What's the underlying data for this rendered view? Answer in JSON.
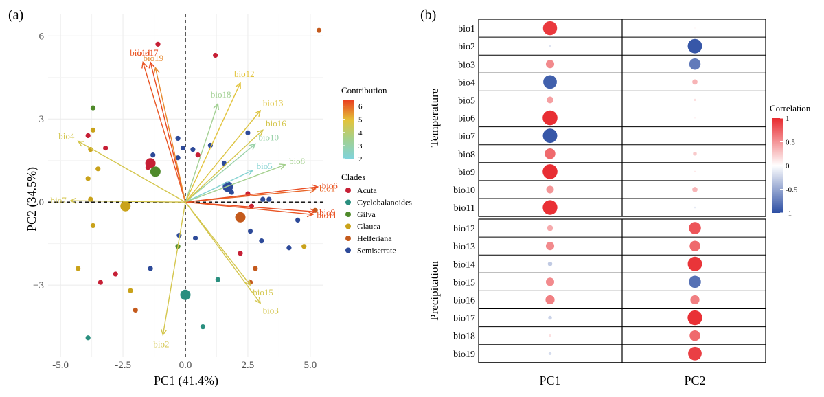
{
  "colors": {
    "acuta": "#c61f35",
    "cyclobalanoides": "#2a8f7f",
    "gilva": "#4f8a2b",
    "glauca": "#c9a21a",
    "helferiana": "#c45a1c",
    "semiserrate": "#2d4a99",
    "corr_neg": "#2c4ea3",
    "corr_mid": "#ffffff",
    "corr_pos": "#e82a2f",
    "contrib_low": "#7fd3dc",
    "contrib_mid1": "#a6d08a",
    "contrib_mid2": "#e3c33a",
    "contrib_high": "#ea3b1f",
    "grid": "#ebebeb",
    "axis_text": "#4d4d4d"
  },
  "chart_data": [
    {
      "panel_label": "(a)",
      "type": "scatter",
      "xlabel": "PC1 (41.4%)",
      "ylabel": "PC2 (34.5%)",
      "xlim": [
        -5.5,
        5.5
      ],
      "ylim": [
        -5.6,
        6.8
      ],
      "xticks": [
        -5,
        -2.5,
        0,
        2.5,
        5
      ],
      "xtick_labels": [
        "-5.0",
        "-2.5",
        "0.0",
        "2.5",
        "5.0"
      ],
      "yticks": [
        -3,
        0,
        3,
        6
      ],
      "ytick_labels": [
        "−3",
        "0",
        "3",
        "6"
      ],
      "grid": true,
      "legend_clades": {
        "title": "Clades",
        "items": [
          {
            "name": "Acuta",
            "color_key": "acuta"
          },
          {
            "name": "Cyclobalanoides",
            "color_key": "cyclobalanoides"
          },
          {
            "name": "Gilva",
            "color_key": "gilva"
          },
          {
            "name": "Glauca",
            "color_key": "glauca"
          },
          {
            "name": "Helferiana",
            "color_key": "helferiana"
          },
          {
            "name": "Semiserrate",
            "color_key": "semiserrate"
          }
        ]
      },
      "legend_contribution": {
        "title": "Contribution",
        "min": 2,
        "max": 6.5,
        "ticks": [
          2,
          3,
          4,
          5,
          6
        ],
        "tick_labels": [
          "2",
          "3",
          "4",
          "5",
          "6"
        ]
      },
      "arrows": [
        {
          "name": "bio1",
          "x": 5.2,
          "y": 0.45,
          "contribution": 6.0
        },
        {
          "name": "bio2",
          "x": -0.9,
          "y": -4.8,
          "contribution": 4.6
        },
        {
          "name": "bio3",
          "x": 3.0,
          "y": -3.65,
          "contribution": 4.6
        },
        {
          "name": "bio4",
          "x": -4.3,
          "y": 2.2,
          "contribution": 4.6
        },
        {
          "name": "bio5",
          "x": 2.7,
          "y": 1.15,
          "contribution": 2.2
        },
        {
          "name": "bio6",
          "x": 5.3,
          "y": 0.55,
          "contribution": 6.3
        },
        {
          "name": "bio7",
          "x": -4.6,
          "y": 0.05,
          "contribution": 4.6
        },
        {
          "name": "bio8",
          "x": 4.0,
          "y": 1.35,
          "contribution": 3.5
        },
        {
          "name": "bio9",
          "x": 5.2,
          "y": -0.35,
          "contribution": 6.3
        },
        {
          "name": "bio10",
          "x": 2.8,
          "y": 2.1,
          "contribution": 3.0
        },
        {
          "name": "bio11",
          "x": 5.1,
          "y": -0.45,
          "contribution": 6.2
        },
        {
          "name": "bio12",
          "x": 2.2,
          "y": 4.3,
          "contribution": 4.9
        },
        {
          "name": "bio13",
          "x": 3.0,
          "y": 3.3,
          "contribution": 4.8
        },
        {
          "name": "bio14",
          "x": -1.7,
          "y": 5.05,
          "contribution": 6.2
        },
        {
          "name": "bio15",
          "x": 2.6,
          "y": -3.0,
          "contribution": 4.6
        },
        {
          "name": "bio16",
          "x": 3.1,
          "y": 2.6,
          "contribution": 4.6
        },
        {
          "name": "bio17",
          "x": -1.4,
          "y": 5.05,
          "contribution": 6.3
        },
        {
          "name": "bio18",
          "x": 1.3,
          "y": 3.55,
          "contribution": 3.4
        },
        {
          "name": "bio19",
          "x": -1.2,
          "y": 4.85,
          "contribution": 5.6
        }
      ],
      "points": [
        {
          "x": 5.35,
          "y": 6.2,
          "clade": "helferiana",
          "size": 1
        },
        {
          "x": -1.1,
          "y": 5.7,
          "clade": "acuta",
          "size": 1
        },
        {
          "x": 1.2,
          "y": 5.3,
          "clade": "acuta",
          "size": 1
        },
        {
          "x": -3.7,
          "y": 3.4,
          "clade": "gilva",
          "size": 1
        },
        {
          "x": -3.7,
          "y": 2.6,
          "clade": "glauca",
          "size": 1
        },
        {
          "x": -3.9,
          "y": 2.4,
          "clade": "acuta",
          "size": 1
        },
        {
          "x": -3.8,
          "y": 1.9,
          "clade": "glauca",
          "size": 1
        },
        {
          "x": -3.2,
          "y": 1.95,
          "clade": "acuta",
          "size": 1
        },
        {
          "x": -3.5,
          "y": 1.2,
          "clade": "glauca",
          "size": 1
        },
        {
          "x": -3.9,
          "y": 0.85,
          "clade": "glauca",
          "size": 1
        },
        {
          "x": -3.8,
          "y": 0.1,
          "clade": "glauca",
          "size": 1
        },
        {
          "x": -3.7,
          "y": -0.85,
          "clade": "glauca",
          "size": 1
        },
        {
          "x": -4.3,
          "y": -2.4,
          "clade": "glauca",
          "size": 1
        },
        {
          "x": -3.4,
          "y": -2.9,
          "clade": "acuta",
          "size": 1
        },
        {
          "x": -2.8,
          "y": -2.6,
          "clade": "acuta",
          "size": 1
        },
        {
          "x": -3.9,
          "y": -4.9,
          "clade": "cyclobalanoides",
          "size": 1
        },
        {
          "x": -2.4,
          "y": -0.15,
          "clade": "glauca",
          "size": 2
        },
        {
          "x": -1.4,
          "y": 1.4,
          "clade": "acuta",
          "size": 2
        },
        {
          "x": -1.2,
          "y": 1.1,
          "clade": "gilva",
          "size": 2
        },
        {
          "x": -1.5,
          "y": 1.25,
          "clade": "acuta",
          "size": 1
        },
        {
          "x": -1.3,
          "y": 1.7,
          "clade": "semiserrate",
          "size": 1
        },
        {
          "x": -0.3,
          "y": 2.3,
          "clade": "semiserrate",
          "size": 1
        },
        {
          "x": -0.1,
          "y": 1.95,
          "clade": "semiserrate",
          "size": 1
        },
        {
          "x": 0.3,
          "y": 1.9,
          "clade": "semiserrate",
          "size": 1
        },
        {
          "x": -0.3,
          "y": 1.6,
          "clade": "semiserrate",
          "size": 1
        },
        {
          "x": 0.5,
          "y": 1.7,
          "clade": "acuta",
          "size": 1
        },
        {
          "x": 1.0,
          "y": 2.05,
          "clade": "semiserrate",
          "size": 1
        },
        {
          "x": 1.55,
          "y": 1.4,
          "clade": "semiserrate",
          "size": 1
        },
        {
          "x": 2.5,
          "y": 2.5,
          "clade": "semiserrate",
          "size": 1
        },
        {
          "x": 1.7,
          "y": 0.55,
          "clade": "semiserrate",
          "size": 2
        },
        {
          "x": 1.85,
          "y": 0.35,
          "clade": "semiserrate",
          "size": 1
        },
        {
          "x": 2.5,
          "y": 0.3,
          "clade": "acuta",
          "size": 1
        },
        {
          "x": 2.65,
          "y": -0.15,
          "clade": "acuta",
          "size": 1
        },
        {
          "x": 3.1,
          "y": 0.1,
          "clade": "semiserrate",
          "size": 1
        },
        {
          "x": 3.35,
          "y": 0.1,
          "clade": "semiserrate",
          "size": 1
        },
        {
          "x": 2.2,
          "y": -0.55,
          "clade": "helferiana",
          "size": 2
        },
        {
          "x": 4.5,
          "y": -0.65,
          "clade": "semiserrate",
          "size": 1
        },
        {
          "x": 5.2,
          "y": -0.3,
          "clade": "helferiana",
          "size": 1
        },
        {
          "x": 2.6,
          "y": -1.05,
          "clade": "semiserrate",
          "size": 1
        },
        {
          "x": 3.05,
          "y": -1.4,
          "clade": "semiserrate",
          "size": 1
        },
        {
          "x": 4.15,
          "y": -1.65,
          "clade": "semiserrate",
          "size": 1
        },
        {
          "x": 4.75,
          "y": -1.6,
          "clade": "glauca",
          "size": 1
        },
        {
          "x": 2.2,
          "y": -1.85,
          "clade": "acuta",
          "size": 1
        },
        {
          "x": 2.8,
          "y": -2.4,
          "clade": "helferiana",
          "size": 1
        },
        {
          "x": 2.6,
          "y": -2.9,
          "clade": "helferiana",
          "size": 1
        },
        {
          "x": 1.3,
          "y": -2.8,
          "clade": "cyclobalanoides",
          "size": 1
        },
        {
          "x": 0.7,
          "y": -4.5,
          "clade": "cyclobalanoides",
          "size": 1
        },
        {
          "x": 0.0,
          "y": -3.35,
          "clade": "cyclobalanoides",
          "size": 2
        },
        {
          "x": -1.4,
          "y": -2.4,
          "clade": "semiserrate",
          "size": 1
        },
        {
          "x": -2.2,
          "y": -3.2,
          "clade": "glauca",
          "size": 1
        },
        {
          "x": -2.0,
          "y": -3.9,
          "clade": "helferiana",
          "size": 1
        },
        {
          "x": -0.25,
          "y": -1.2,
          "clade": "semiserrate",
          "size": 1
        },
        {
          "x": -0.3,
          "y": -1.6,
          "clade": "gilva",
          "size": 1
        },
        {
          "x": 0.4,
          "y": -1.3,
          "clade": "semiserrate",
          "size": 1
        }
      ]
    },
    {
      "panel_label": "(b)",
      "type": "heatmap",
      "columns": [
        "PC1",
        "PC2"
      ],
      "groups": [
        {
          "name": "Temperature",
          "rows": [
            "bio1",
            "bio2",
            "bio3",
            "bio4",
            "bio5",
            "bio6",
            "bio7",
            "bio8",
            "bio9",
            "bio10",
            "bio11"
          ]
        },
        {
          "name": "Precipitation",
          "rows": [
            "bio12",
            "bio13",
            "bio14",
            "bio15",
            "bio16",
            "bio17",
            "bio18",
            "bio19"
          ]
        }
      ],
      "values": {
        "bio1": [
          0.93,
          0.03
        ],
        "bio2": [
          -0.15,
          -0.95
        ],
        "bio3": [
          0.55,
          -0.75
        ],
        "bio4": [
          -0.9,
          0.35
        ],
        "bio5": [
          0.45,
          0.15
        ],
        "bio6": [
          0.98,
          0.06
        ],
        "bio7": [
          -0.95,
          0.0
        ],
        "bio8": [
          0.7,
          0.25
        ],
        "bio9": [
          0.98,
          0.1
        ],
        "bio10": [
          0.5,
          0.35
        ],
        "bio11": [
          0.97,
          -0.12
        ],
        "bio12": [
          0.4,
          0.8
        ],
        "bio13": [
          0.55,
          0.7
        ],
        "bio14": [
          -0.3,
          0.95
        ],
        "bio15": [
          0.55,
          -0.8
        ],
        "bio16": [
          0.6,
          0.6
        ],
        "bio17": [
          -0.25,
          0.97
        ],
        "bio18": [
          0.15,
          0.7
        ],
        "bio19": [
          -0.2,
          0.9
        ]
      },
      "legend": {
        "title": "Correlation",
        "min": -1,
        "max": 1,
        "ticks": [
          1,
          0.5,
          0,
          -0.5,
          -1
        ],
        "tick_labels": [
          "1",
          "0.5",
          "0",
          "-0.5",
          "-1"
        ]
      }
    }
  ]
}
